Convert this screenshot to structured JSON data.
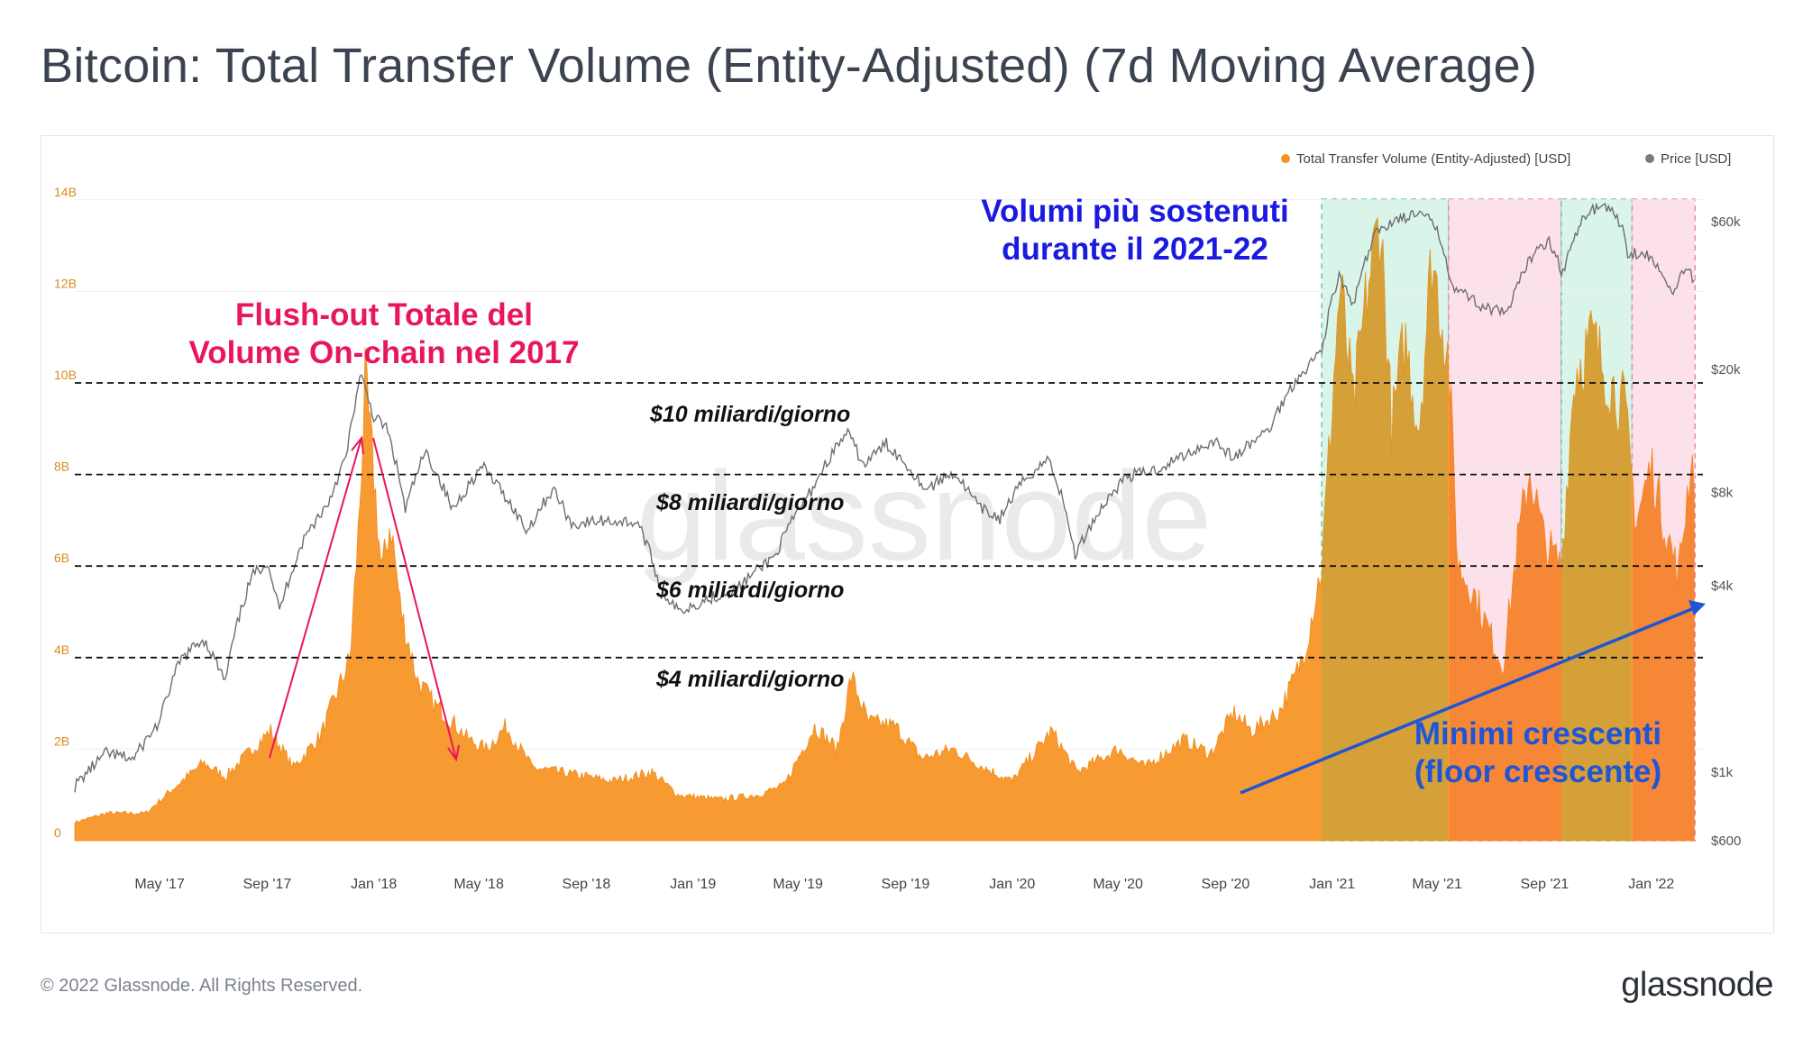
{
  "page": {
    "title": "Bitcoin: Total Transfer Volume (Entity-Adjusted) (7d Moving Average)",
    "copyright": "© 2022 Glassnode. All Rights Reserved.",
    "logo": "glassnode",
    "watermark": "glassnode"
  },
  "legend": {
    "volume": "Total Transfer Volume (Entity-Adjusted) [USD]",
    "price": "Price [USD]",
    "volume_color": "#f7931a",
    "price_color": "#7a7a7a"
  },
  "annotations": {
    "flush_line1": "Flush-out Totale del",
    "flush_line2": "Volume On-chain nel 2017",
    "volumi_line1": "Volumi più sostenuti",
    "volumi_line2": "durante il 2021-22",
    "minimi_line1": "Minimi crescenti",
    "minimi_line2": "(floor crescente)",
    "level_10": "$10 miliardi/giorno",
    "level_8": "$8 miliardi/giorno",
    "level_6": "$6 miliardi/giorno",
    "level_4": "$4 miliardi/giorno",
    "flush_color": "#e8175d",
    "volumi_color": "#1a1ae0",
    "minimi_color": "#1f55d6"
  },
  "chart_data": {
    "type": "area",
    "x_ticks": [
      "May '17",
      "Sep '17",
      "Jan '18",
      "May '18",
      "Sep '18",
      "Jan '19",
      "May '19",
      "Sep '19",
      "Jan '20",
      "May '20",
      "Sep '20",
      "Jan '21",
      "May '21",
      "Sep '21",
      "Jan '22"
    ],
    "y_left_ticks": [
      "0",
      "2B",
      "4B",
      "6B",
      "8B",
      "10B",
      "12B",
      "14B"
    ],
    "y_left_range": [
      0,
      15000000000
    ],
    "y_right_ticks": [
      "$600",
      "$1k",
      "$4k",
      "$8k",
      "$20k",
      "$60k"
    ],
    "y_right_scale": "log",
    "x_range": [
      "2017-01-24",
      "2022-03-01"
    ],
    "horizontal_reference_lines": [
      10000000000,
      8000000000,
      6000000000,
      4000000000
    ],
    "highlight_periods": [
      {
        "start": "2020-12-20",
        "end": "2021-05-14",
        "color": "#d9f5e9"
      },
      {
        "start": "2021-05-14",
        "end": "2021-09-20",
        "color": "#fde1ea"
      },
      {
        "start": "2021-09-20",
        "end": "2021-12-10",
        "color": "#d9f5e9"
      },
      {
        "start": "2021-12-10",
        "end": "2022-02-20",
        "color": "#fde1ea"
      }
    ],
    "series": [
      {
        "name": "Total Transfer Volume (Entity-Adjusted) [USD]",
        "points": [
          [
            "2017-01-24",
            0.4
          ],
          [
            "2017-03-01",
            0.6
          ],
          [
            "2017-04-15",
            0.6
          ],
          [
            "2017-05-20",
            1.2
          ],
          [
            "2017-06-20",
            1.7
          ],
          [
            "2017-07-15",
            1.4
          ],
          [
            "2017-08-20",
            2.1
          ],
          [
            "2017-09-05",
            2.4
          ],
          [
            "2017-10-01",
            1.6
          ],
          [
            "2017-11-01",
            2.3
          ],
          [
            "2017-11-25",
            3.5
          ],
          [
            "2017-12-05",
            4.0
          ],
          [
            "2017-12-15",
            7.0
          ],
          [
            "2017-12-22",
            10.0
          ],
          [
            "2018-01-01",
            8.0
          ],
          [
            "2018-01-10",
            5.8
          ],
          [
            "2018-01-20",
            7.0
          ],
          [
            "2018-02-01",
            5.0
          ],
          [
            "2018-02-20",
            3.5
          ],
          [
            "2018-03-10",
            3.0
          ],
          [
            "2018-04-01",
            2.6
          ],
          [
            "2018-04-20",
            2.2
          ],
          [
            "2018-05-10",
            2.0
          ],
          [
            "2018-06-01",
            2.5
          ],
          [
            "2018-07-01",
            1.6
          ],
          [
            "2018-08-01",
            1.5
          ],
          [
            "2018-09-01",
            1.4
          ],
          [
            "2018-10-01",
            1.3
          ],
          [
            "2018-11-15",
            1.5
          ],
          [
            "2018-12-15",
            1.0
          ],
          [
            "2019-02-01",
            0.9
          ],
          [
            "2019-03-15",
            1.0
          ],
          [
            "2019-04-15",
            1.2
          ],
          [
            "2019-05-20",
            2.5
          ],
          [
            "2019-06-15",
            2.0
          ],
          [
            "2019-07-01",
            3.6
          ],
          [
            "2019-07-20",
            2.6
          ],
          [
            "2019-08-20",
            2.5
          ],
          [
            "2019-09-20",
            1.8
          ],
          [
            "2019-10-25",
            2.0
          ],
          [
            "2019-11-30",
            1.6
          ],
          [
            "2020-01-01",
            1.3
          ],
          [
            "2020-02-15",
            2.4
          ],
          [
            "2020-03-15",
            1.5
          ],
          [
            "2020-05-01",
            2.0
          ],
          [
            "2020-06-01",
            1.6
          ],
          [
            "2020-07-15",
            2.2
          ],
          [
            "2020-08-15",
            1.9
          ],
          [
            "2020-09-10",
            2.8
          ],
          [
            "2020-10-01",
            2.4
          ],
          [
            "2020-11-01",
            2.8
          ],
          [
            "2020-11-20",
            3.6
          ],
          [
            "2020-12-01",
            4.2
          ],
          [
            "2020-12-20",
            6.0
          ],
          [
            "2021-01-10",
            12.2
          ],
          [
            "2021-01-25",
            9.5
          ],
          [
            "2021-02-10",
            12.0
          ],
          [
            "2021-02-25",
            13.7
          ],
          [
            "2021-03-10",
            9.0
          ],
          [
            "2021-03-25",
            11.0
          ],
          [
            "2021-04-10",
            9.0
          ],
          [
            "2021-04-25",
            12.8
          ],
          [
            "2021-05-14",
            10.5
          ],
          [
            "2021-05-25",
            6.0
          ],
          [
            "2021-06-10",
            5.5
          ],
          [
            "2021-07-01",
            4.5
          ],
          [
            "2021-07-15",
            3.8
          ],
          [
            "2021-08-01",
            6.5
          ],
          [
            "2021-08-15",
            8.1
          ],
          [
            "2021-09-01",
            6.5
          ],
          [
            "2021-09-20",
            6.0
          ],
          [
            "2021-10-05",
            10.2
          ],
          [
            "2021-10-25",
            11.0
          ],
          [
            "2021-11-15",
            10.0
          ],
          [
            "2021-12-01",
            9.5
          ],
          [
            "2021-12-15",
            7.0
          ],
          [
            "2022-01-01",
            8.2
          ],
          [
            "2022-01-15",
            7.0
          ],
          [
            "2022-02-01",
            5.8
          ],
          [
            "2022-02-15",
            8.3
          ],
          [
            "2022-02-20",
            8.1
          ]
        ],
        "unit": "billion USD"
      },
      {
        "name": "Price [USD]",
        "points": [
          [
            "2017-01-24",
            900
          ],
          [
            "2017-03-01",
            1150
          ],
          [
            "2017-04-01",
            1100
          ],
          [
            "2017-05-01",
            1450
          ],
          [
            "2017-05-25",
            2300
          ],
          [
            "2017-06-20",
            2700
          ],
          [
            "2017-07-15",
            1950
          ],
          [
            "2017-08-15",
            4300
          ],
          [
            "2017-09-01",
            4800
          ],
          [
            "2017-09-15",
            3300
          ],
          [
            "2017-10-15",
            5800
          ],
          [
            "2017-11-10",
            7400
          ],
          [
            "2017-12-01",
            10500
          ],
          [
            "2017-12-17",
            19000
          ],
          [
            "2018-01-01",
            14000
          ],
          [
            "2018-01-15",
            13000
          ],
          [
            "2018-02-06",
            7000
          ],
          [
            "2018-03-01",
            10800
          ],
          [
            "2018-04-01",
            7000
          ],
          [
            "2018-05-05",
            9700
          ],
          [
            "2018-06-25",
            6000
          ],
          [
            "2018-07-25",
            8200
          ],
          [
            "2018-08-15",
            6300
          ],
          [
            "2018-09-20",
            6500
          ],
          [
            "2018-10-30",
            6400
          ],
          [
            "2018-11-25",
            3900
          ],
          [
            "2018-12-15",
            3300
          ],
          [
            "2019-01-15",
            3600
          ],
          [
            "2019-02-20",
            3900
          ],
          [
            "2019-04-05",
            5000
          ],
          [
            "2019-05-15",
            8000
          ],
          [
            "2019-06-26",
            12500
          ],
          [
            "2019-07-15",
            9800
          ],
          [
            "2019-08-10",
            11500
          ],
          [
            "2019-09-25",
            8200
          ],
          [
            "2019-10-26",
            9300
          ],
          [
            "2019-11-25",
            7100
          ],
          [
            "2019-12-18",
            6600
          ],
          [
            "2020-01-15",
            8800
          ],
          [
            "2020-02-12",
            10300
          ],
          [
            "2020-03-13",
            5000
          ],
          [
            "2020-04-10",
            7000
          ],
          [
            "2020-05-10",
            9000
          ],
          [
            "2020-06-15",
            9500
          ],
          [
            "2020-07-28",
            11000
          ],
          [
            "2020-08-20",
            11800
          ],
          [
            "2020-09-10",
            10300
          ],
          [
            "2020-10-21",
            12800
          ],
          [
            "2020-11-20",
            18400
          ],
          [
            "2020-12-20",
            23000
          ],
          [
            "2021-01-08",
            40000
          ],
          [
            "2021-01-25",
            32000
          ],
          [
            "2021-02-20",
            55000
          ],
          [
            "2021-03-13",
            61000
          ],
          [
            "2021-04-14",
            63500
          ],
          [
            "2021-05-01",
            57000
          ],
          [
            "2021-05-19",
            37000
          ],
          [
            "2021-06-22",
            32000
          ],
          [
            "2021-07-20",
            30000
          ],
          [
            "2021-08-23",
            49800
          ],
          [
            "2021-09-07",
            52000
          ],
          [
            "2021-09-21",
            41000
          ],
          [
            "2021-10-20",
            65000
          ],
          [
            "2021-11-10",
            68000
          ],
          [
            "2021-11-30",
            57000
          ],
          [
            "2021-12-04",
            48000
          ],
          [
            "2021-12-28",
            47000
          ],
          [
            "2022-01-10",
            41500
          ],
          [
            "2022-01-24",
            35000
          ],
          [
            "2022-02-10",
            44000
          ],
          [
            "2022-02-20",
            38000
          ]
        ],
        "unit": "USD"
      }
    ]
  }
}
